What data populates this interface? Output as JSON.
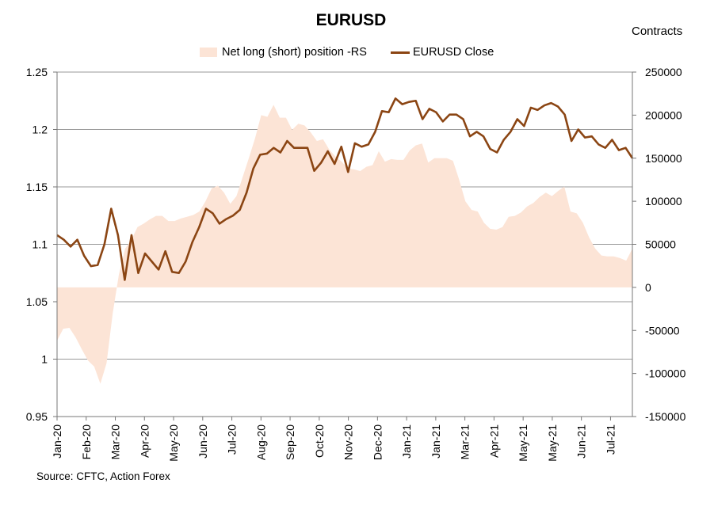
{
  "chart_data": {
    "type": "line",
    "title": "EURUSD",
    "right_axis_label": "Contracts",
    "source": "Source: CFTC, Action Forex",
    "left_axis": {
      "ylim": [
        0.95,
        1.25
      ],
      "ticks": [
        "0.95",
        "1",
        "1.05",
        "1.1",
        "1.15",
        "1.2",
        "1.25"
      ],
      "tick_values": [
        0.95,
        1.0,
        1.05,
        1.1,
        1.15,
        1.2,
        1.25
      ]
    },
    "right_axis": {
      "ylim": [
        -150000,
        250000
      ],
      "ticks": [
        "-150000",
        "-100000",
        "-50000",
        "0",
        "50000",
        "100000",
        "150000",
        "200000",
        "250000"
      ],
      "tick_values": [
        -150000,
        -100000,
        -50000,
        0,
        50000,
        100000,
        150000,
        200000,
        250000
      ]
    },
    "x_tick_labels": [
      "Jan-20",
      "Feb-20",
      "Mar-20",
      "Apr-20",
      "May-20",
      "Jun-20",
      "Jul-20",
      "Aug-20",
      "Sep-20",
      "Oct-20",
      "Nov-20",
      "Dec-20",
      "Jan-21",
      "Jan-21",
      "Mar-21",
      "Apr-21",
      "May-21",
      "May-21",
      "Jun-21",
      "Jul-21"
    ],
    "x_tick_weeks": [
      0,
      4,
      8,
      12,
      16,
      20,
      24,
      28,
      32,
      36,
      40,
      44,
      48,
      52,
      56,
      60,
      64,
      68,
      72,
      76
    ],
    "series": [
      {
        "name": "Net long (short) position -RS",
        "axis": "right",
        "kind": "area",
        "color": "#fce4d6",
        "values": [
          -62000,
          -48000,
          -47000,
          -58000,
          -72000,
          -85000,
          -92000,
          -112000,
          -88000,
          -30000,
          15000,
          45000,
          55000,
          70000,
          74000,
          79000,
          83000,
          83000,
          77000,
          77000,
          80000,
          82000,
          84000,
          88000,
          100000,
          115000,
          118000,
          110000,
          97000,
          106000,
          128000,
          150000,
          173000,
          200000,
          198000,
          212000,
          197000,
          197000,
          183000,
          190000,
          188000,
          180000,
          170000,
          172000,
          160000,
          152000,
          146000,
          138000,
          137000,
          135000,
          140000,
          142000,
          158000,
          146000,
          149000,
          148000,
          148000,
          159000,
          165000,
          167000,
          145000,
          150000,
          150000,
          150000,
          147000,
          125000,
          100000,
          90000,
          88000,
          75000,
          68000,
          67000,
          70000,
          82000,
          83000,
          87000,
          94000,
          98000,
          105000,
          110000,
          106000,
          112000,
          117000,
          88000,
          86000,
          75000,
          58000,
          45000,
          37000,
          36000,
          36000,
          34000,
          31000,
          45000
        ]
      },
      {
        "name": "EURUSD Close",
        "axis": "left",
        "kind": "line",
        "color": "#8b4513",
        "values": [
          1.108,
          1.104,
          1.098,
          1.104,
          1.09,
          1.081,
          1.082,
          1.1,
          1.131,
          1.108,
          1.069,
          1.108,
          1.075,
          1.092,
          1.085,
          1.078,
          1.094,
          1.076,
          1.075,
          1.085,
          1.102,
          1.115,
          1.131,
          1.127,
          1.118,
          1.122,
          1.125,
          1.13,
          1.145,
          1.166,
          1.178,
          1.179,
          1.184,
          1.18,
          1.19,
          1.184,
          1.184,
          1.184,
          1.164,
          1.171,
          1.181,
          1.17,
          1.185,
          1.163,
          1.188,
          1.185,
          1.187,
          1.198,
          1.216,
          1.215,
          1.227,
          1.222,
          1.224,
          1.225,
          1.209,
          1.218,
          1.215,
          1.207,
          1.213,
          1.213,
          1.209,
          1.194,
          1.198,
          1.194,
          1.183,
          1.18,
          1.191,
          1.198,
          1.209,
          1.203,
          1.219,
          1.217,
          1.221,
          1.223,
          1.22,
          1.213,
          1.19,
          1.2,
          1.193,
          1.194,
          1.187,
          1.184,
          1.191,
          1.182,
          1.184,
          1.175
        ]
      }
    ]
  },
  "legend": {
    "area_label": "Net long (short) position -RS",
    "line_label": "EURUSD Close"
  }
}
